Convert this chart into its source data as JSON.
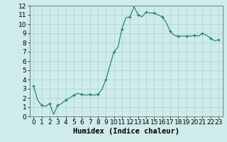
{
  "x_values": [
    0,
    0.5,
    1,
    1.5,
    2,
    2.5,
    3,
    3.5,
    4,
    4.5,
    5,
    5.5,
    6,
    6.5,
    7,
    7.5,
    8,
    8.5,
    9,
    9.5,
    10,
    10.5,
    11,
    11.5,
    12,
    12.5,
    13,
    13.5,
    14,
    14.5,
    15,
    15.5,
    16,
    16.5,
    17,
    17.5,
    18,
    18.5,
    19,
    19.5,
    20,
    20.5,
    21,
    21.5,
    22,
    22.5,
    23
  ],
  "y_values": [
    3.3,
    1.8,
    1.2,
    1.1,
    1.4,
    0.2,
    1.2,
    1.4,
    1.8,
    2.0,
    2.3,
    2.5,
    2.4,
    2.3,
    2.4,
    2.3,
    2.4,
    2.9,
    4.0,
    5.5,
    7.0,
    7.5,
    9.5,
    10.7,
    10.8,
    11.9,
    11.0,
    10.8,
    11.3,
    11.2,
    11.2,
    11.0,
    10.8,
    10.2,
    9.2,
    8.8,
    8.7,
    8.7,
    8.7,
    8.7,
    8.8,
    8.7,
    9.0,
    8.8,
    8.5,
    8.2,
    8.3
  ],
  "marker_x": [
    0,
    1,
    2,
    3,
    4,
    5,
    6,
    7,
    8,
    9,
    10,
    11,
    12,
    13,
    14,
    15,
    16,
    17,
    18,
    19,
    20,
    21,
    22,
    23
  ],
  "marker_y": [
    3.3,
    1.2,
    1.4,
    1.2,
    1.8,
    2.3,
    2.4,
    2.4,
    2.4,
    4.0,
    7.0,
    9.5,
    10.8,
    11.0,
    11.3,
    11.2,
    10.8,
    9.2,
    8.7,
    8.7,
    8.8,
    9.0,
    8.5,
    8.3
  ],
  "line_color": "#1a7a6e",
  "marker_color": "#1a7a6e",
  "bg_color": "#cdecea",
  "grid_color": "#aed4d0",
  "xlabel": "Humidex (Indice chaleur)",
  "xlim": [
    -0.5,
    23.5
  ],
  "ylim": [
    0,
    12
  ],
  "yticks": [
    0,
    1,
    2,
    3,
    4,
    5,
    6,
    7,
    8,
    9,
    10,
    11,
    12
  ],
  "xticks": [
    0,
    1,
    2,
    3,
    4,
    5,
    6,
    7,
    8,
    9,
    10,
    11,
    12,
    13,
    14,
    15,
    16,
    17,
    18,
    19,
    20,
    21,
    22,
    23
  ],
  "xlabel_fontsize": 7.5,
  "tick_fontsize": 6.5
}
